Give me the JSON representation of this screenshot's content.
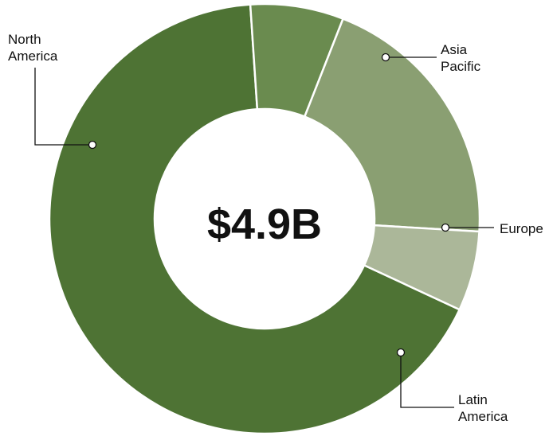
{
  "chart_data": {
    "type": "pie",
    "style": "donut",
    "center_label": "$4.9B",
    "slices": [
      {
        "label": [
          "North",
          "America"
        ],
        "value": 67,
        "color": "#4e7334"
      },
      {
        "label": [
          "Asia",
          "Pacific"
        ],
        "value": 7,
        "color": "#6a8b4f"
      },
      {
        "label": [
          "Europe"
        ],
        "value": 20,
        "color": "#8a9f72"
      },
      {
        "label": [
          "Latin",
          "America"
        ],
        "value": 6,
        "color": "#abb799"
      }
    ]
  }
}
